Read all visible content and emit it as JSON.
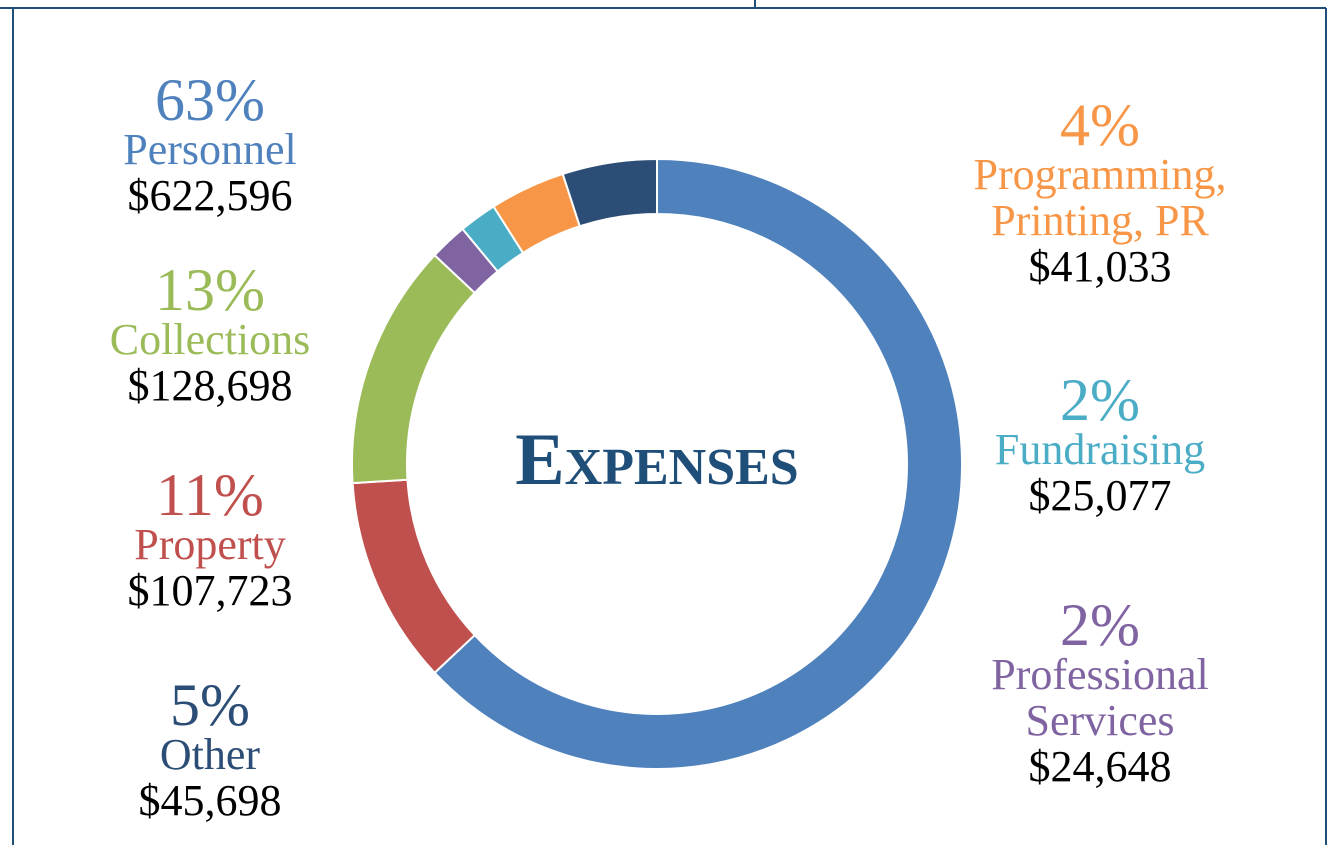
{
  "chart_data": {
    "type": "donut",
    "title": "Expenses",
    "categories": [
      "Personnel",
      "Property",
      "Collections",
      "Professional Services",
      "Fundraising",
      "Programming, Printing, PR",
      "Other"
    ],
    "values": [
      63,
      11,
      13,
      2,
      2,
      4,
      5
    ],
    "value_labels": [
      "63%",
      "11%",
      "13%",
      "2%",
      "2%",
      "4%",
      "5%"
    ],
    "amounts": [
      "$622,596",
      "$107,723",
      "$128,698",
      "$24,648",
      "$25,077",
      "$41,033",
      "$45,698"
    ],
    "colors": [
      "#4f81bd",
      "#c0504d",
      "#9bbb59",
      "#8064a2",
      "#4bacc6",
      "#f79646",
      "#2c4d75"
    ]
  }
}
